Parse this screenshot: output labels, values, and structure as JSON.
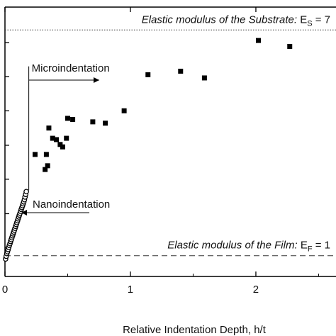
{
  "chart_data": {
    "type": "scatter",
    "title": "",
    "xlabel": "Relative Indentation Depth, h/t",
    "ylabel": "",
    "xlim": [
      0,
      2.65
    ],
    "ylim": [
      0,
      1
    ],
    "x_ticks": [
      0,
      1,
      2
    ],
    "x_tick_labels": [
      "0",
      "1",
      "2"
    ],
    "grid": false,
    "legend": "none",
    "reference_lines": [
      {
        "name": "substrate",
        "y": 0.915,
        "style": "dotted",
        "text": "Elastic modulus of the Substrate: E",
        "sub": "S",
        "suffix": " = 7"
      },
      {
        "name": "film",
        "y": 0.077,
        "style": "dashed",
        "text": "Elastic modulus of the Film: E",
        "sub": "F",
        "suffix": " = 1"
      }
    ],
    "regions": [
      {
        "name": "microindentation",
        "label": "Microindentation",
        "arrow": "right"
      },
      {
        "name": "nanoindentation",
        "label": "Nanoindentation",
        "arrow": "left"
      }
    ],
    "boundary_x": 0.19,
    "series": [
      {
        "marker": "square",
        "points": [
          [
            0.24,
            0.453
          ],
          [
            0.32,
            0.397
          ],
          [
            0.34,
            0.411
          ],
          [
            0.33,
            0.453
          ],
          [
            0.35,
            0.551
          ],
          [
            0.38,
            0.513
          ],
          [
            0.41,
            0.508
          ],
          [
            0.44,
            0.49
          ],
          [
            0.46,
            0.481
          ],
          [
            0.49,
            0.513
          ],
          [
            0.5,
            0.587
          ],
          [
            0.54,
            0.583
          ],
          [
            0.7,
            0.574
          ],
          [
            0.8,
            0.569
          ],
          [
            0.95,
            0.615
          ],
          [
            1.14,
            0.749
          ],
          [
            1.4,
            0.762
          ],
          [
            1.59,
            0.737
          ],
          [
            2.02,
            0.876
          ],
          [
            2.27,
            0.854
          ]
        ]
      },
      {
        "marker": "circle",
        "points": [
          [
            0.005,
            0.065
          ],
          [
            0.01,
            0.075
          ],
          [
            0.015,
            0.085
          ],
          [
            0.02,
            0.092
          ],
          [
            0.025,
            0.1
          ],
          [
            0.03,
            0.108
          ],
          [
            0.035,
            0.115
          ],
          [
            0.04,
            0.122
          ],
          [
            0.045,
            0.13
          ],
          [
            0.05,
            0.137
          ],
          [
            0.055,
            0.144
          ],
          [
            0.06,
            0.151
          ],
          [
            0.065,
            0.158
          ],
          [
            0.07,
            0.165
          ],
          [
            0.075,
            0.172
          ],
          [
            0.08,
            0.179
          ],
          [
            0.085,
            0.186
          ],
          [
            0.09,
            0.193
          ],
          [
            0.095,
            0.2
          ],
          [
            0.1,
            0.207
          ],
          [
            0.105,
            0.214
          ],
          [
            0.11,
            0.221
          ],
          [
            0.115,
            0.228
          ],
          [
            0.12,
            0.235
          ],
          [
            0.125,
            0.242
          ],
          [
            0.13,
            0.249
          ],
          [
            0.135,
            0.256
          ],
          [
            0.14,
            0.263
          ],
          [
            0.145,
            0.27
          ],
          [
            0.15,
            0.277
          ],
          [
            0.155,
            0.285
          ],
          [
            0.16,
            0.295
          ],
          [
            0.165,
            0.305
          ],
          [
            0.17,
            0.315
          ]
        ]
      }
    ]
  }
}
